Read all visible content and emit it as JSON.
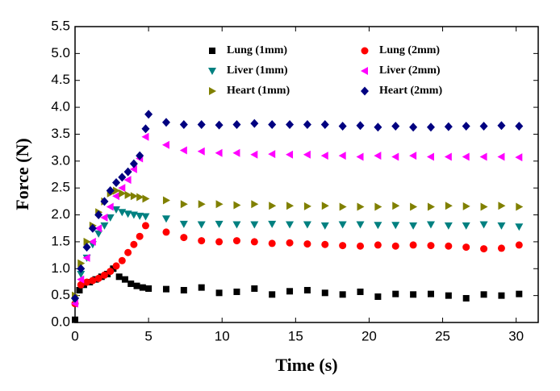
{
  "chart_data": {
    "type": "scatter",
    "xlabel": "Time (s)",
    "ylabel": "Force (N)",
    "xlim": [
      0,
      31.5
    ],
    "ylim": [
      0,
      5.5
    ],
    "xticks": [
      0,
      5,
      10,
      15,
      20,
      25,
      30
    ],
    "yticks": [
      {
        "value": 0,
        "label": "0.0"
      },
      {
        "value": 0.5,
        "label": "0.5"
      },
      {
        "value": 1,
        "label": "1.0"
      },
      {
        "value": 1.5,
        "label": "1.5"
      },
      {
        "value": 2,
        "label": "2.0"
      },
      {
        "value": 2.5,
        "label": "2.5"
      },
      {
        "value": 3,
        "label": "3.0"
      },
      {
        "value": 3.5,
        "label": "3.5"
      },
      {
        "value": 4,
        "label": "4.0"
      },
      {
        "value": 4.5,
        "label": "4.5"
      },
      {
        "value": 5,
        "label": "5.0"
      },
      {
        "value": 5.5,
        "label": "5.5"
      }
    ],
    "series": [
      {
        "name": "Lung (1mm)",
        "color": "#000000",
        "marker": "square",
        "x": [
          0,
          0.3,
          0.6,
          1.0,
          1.4,
          1.8,
          2.2,
          2.6,
          3.0,
          3.4,
          3.8,
          4.2,
          4.6,
          5.0,
          6.2,
          7.4,
          8.6,
          9.8,
          11.0,
          12.2,
          13.4,
          14.6,
          15.8,
          17.0,
          18.2,
          19.4,
          20.6,
          21.8,
          23.0,
          24.2,
          25.4,
          26.6,
          27.8,
          29.0,
          30.2
        ],
        "y": [
          0.05,
          0.6,
          0.7,
          0.75,
          0.8,
          0.85,
          0.9,
          1.0,
          0.85,
          0.8,
          0.72,
          0.68,
          0.65,
          0.63,
          0.62,
          0.6,
          0.65,
          0.55,
          0.57,
          0.63,
          0.52,
          0.58,
          0.6,
          0.55,
          0.52,
          0.57,
          0.48,
          0.53,
          0.52,
          0.53,
          0.5,
          0.45,
          0.52,
          0.5,
          0.53
        ]
      },
      {
        "name": "Lung (2mm)",
        "color": "#ff0000",
        "marker": "circle",
        "x": [
          0,
          0.4,
          0.8,
          1.2,
          1.6,
          2.0,
          2.4,
          2.8,
          3.2,
          3.6,
          4.0,
          4.4,
          4.8,
          6.2,
          7.4,
          8.6,
          9.8,
          11.0,
          12.2,
          13.4,
          14.6,
          15.8,
          17.0,
          18.2,
          19.4,
          20.6,
          21.8,
          23.0,
          24.2,
          25.4,
          26.6,
          27.8,
          29.0,
          30.2
        ],
        "y": [
          0.35,
          0.7,
          0.75,
          0.78,
          0.82,
          0.88,
          0.95,
          1.05,
          1.15,
          1.3,
          1.45,
          1.6,
          1.8,
          1.68,
          1.58,
          1.52,
          1.5,
          1.52,
          1.5,
          1.47,
          1.48,
          1.46,
          1.45,
          1.43,
          1.42,
          1.44,
          1.42,
          1.44,
          1.43,
          1.42,
          1.4,
          1.37,
          1.38,
          1.44
        ]
      },
      {
        "name": "Liver (1mm)",
        "color": "#008080",
        "marker": "triangle-down",
        "x": [
          0,
          0.4,
          0.8,
          1.2,
          1.6,
          2.0,
          2.4,
          2.8,
          3.2,
          3.6,
          4.0,
          4.4,
          4.8,
          6.2,
          7.4,
          8.6,
          9.8,
          11.0,
          12.2,
          13.4,
          14.6,
          15.8,
          17.0,
          18.2,
          19.4,
          20.6,
          21.8,
          23.0,
          24.2,
          25.4,
          26.6,
          27.8,
          29.0,
          30.2
        ],
        "y": [
          0.4,
          0.9,
          1.2,
          1.45,
          1.65,
          1.8,
          1.95,
          2.1,
          2.05,
          2.02,
          2.0,
          1.98,
          1.97,
          1.93,
          1.83,
          1.82,
          1.83,
          1.82,
          1.82,
          1.83,
          1.82,
          1.82,
          1.8,
          1.82,
          1.82,
          1.81,
          1.81,
          1.8,
          1.82,
          1.8,
          1.8,
          1.82,
          1.8,
          1.78
        ]
      },
      {
        "name": "Liver (2mm)",
        "color": "#ff00ff",
        "marker": "triangle-left",
        "x": [
          0,
          0.4,
          0.8,
          1.2,
          1.6,
          2.0,
          2.4,
          2.8,
          3.2,
          3.6,
          4.0,
          4.4,
          4.8,
          6.2,
          7.4,
          8.6,
          9.8,
          11.0,
          12.2,
          13.4,
          14.6,
          15.8,
          17.0,
          18.2,
          19.4,
          20.6,
          21.8,
          23.0,
          24.2,
          25.4,
          26.6,
          27.8,
          29.0,
          30.2
        ],
        "y": [
          0.35,
          0.8,
          1.2,
          1.5,
          1.75,
          1.95,
          2.15,
          2.35,
          2.5,
          2.65,
          2.85,
          3.05,
          3.45,
          3.3,
          3.2,
          3.18,
          3.15,
          3.15,
          3.12,
          3.13,
          3.12,
          3.12,
          3.1,
          3.1,
          3.08,
          3.1,
          3.08,
          3.1,
          3.08,
          3.08,
          3.08,
          3.08,
          3.08,
          3.07
        ]
      },
      {
        "name": "Heart (1mm)",
        "color": "#808000",
        "marker": "triangle-right",
        "x": [
          0,
          0.4,
          0.8,
          1.2,
          1.6,
          2.0,
          2.4,
          2.8,
          3.2,
          3.6,
          4.0,
          4.4,
          4.8,
          6.2,
          7.4,
          8.6,
          9.8,
          11.0,
          12.2,
          13.4,
          14.6,
          15.8,
          17.0,
          18.2,
          19.4,
          20.6,
          21.8,
          23.0,
          24.2,
          25.4,
          26.6,
          27.8,
          29.0,
          30.2
        ],
        "y": [
          0.5,
          1.1,
          1.5,
          1.8,
          2.05,
          2.25,
          2.4,
          2.45,
          2.4,
          2.37,
          2.35,
          2.33,
          2.3,
          2.27,
          2.2,
          2.2,
          2.2,
          2.18,
          2.2,
          2.17,
          2.17,
          2.16,
          2.17,
          2.15,
          2.15,
          2.15,
          2.17,
          2.15,
          2.15,
          2.17,
          2.16,
          2.15,
          2.17,
          2.15
        ]
      },
      {
        "name": "Heart (2mm)",
        "color": "#000080",
        "marker": "diamond",
        "x": [
          0,
          0.4,
          0.8,
          1.2,
          1.6,
          2.0,
          2.4,
          2.8,
          3.2,
          3.6,
          4.0,
          4.4,
          4.8,
          5.0,
          6.2,
          7.4,
          8.6,
          9.8,
          11.0,
          12.2,
          13.4,
          14.6,
          15.8,
          17.0,
          18.2,
          19.4,
          20.6,
          21.8,
          23.0,
          24.2,
          25.4,
          26.6,
          27.8,
          29.0,
          30.2
        ],
        "y": [
          0.45,
          1.0,
          1.4,
          1.75,
          2.0,
          2.25,
          2.45,
          2.6,
          2.7,
          2.8,
          2.95,
          3.1,
          3.6,
          3.87,
          3.72,
          3.68,
          3.68,
          3.67,
          3.68,
          3.7,
          3.68,
          3.68,
          3.68,
          3.68,
          3.65,
          3.66,
          3.63,
          3.65,
          3.63,
          3.63,
          3.64,
          3.65,
          3.65,
          3.66,
          3.65
        ]
      }
    ]
  }
}
